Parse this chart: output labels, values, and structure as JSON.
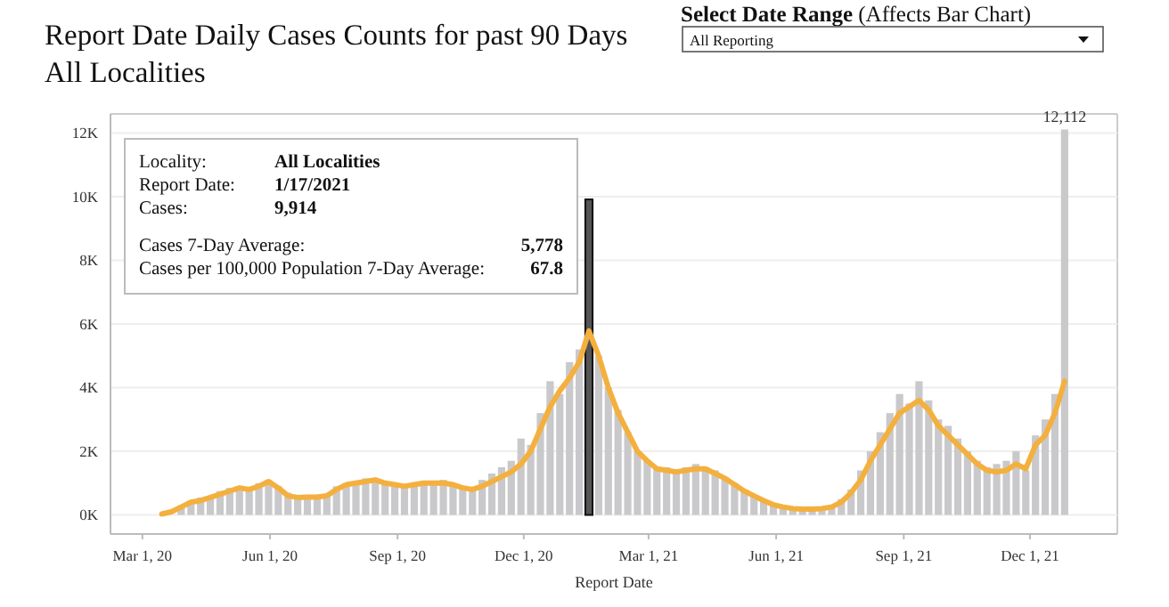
{
  "chart_data": {
    "type": "bar",
    "title": "Report Date Daily Cases Counts for past 90 Days",
    "subtitle": "All Localities",
    "xlabel": "Report Date",
    "annotations": [
      "Select Date Range (Affects Bar Chart)",
      "All Reporting",
      "Locality: All Localities",
      "Report Date: 1/17/2021",
      "Cases: 9,914",
      "Cases 7-Day Average: 5,778",
      "Cases per 100,000 Population 7-Day Average: 67.8"
    ],
    "x": [
      "2020-03-15",
      "2020-03-22",
      "2020-03-29",
      "2020-04-05",
      "2020-04-12",
      "2020-04-19",
      "2020-04-26",
      "2020-05-03",
      "2020-05-10",
      "2020-05-17",
      "2020-05-24",
      "2020-05-31",
      "2020-06-07",
      "2020-06-14",
      "2020-06-21",
      "2020-06-28",
      "2020-07-05",
      "2020-07-12",
      "2020-07-19",
      "2020-07-26",
      "2020-08-02",
      "2020-08-09",
      "2020-08-16",
      "2020-08-23",
      "2020-08-30",
      "2020-09-06",
      "2020-09-13",
      "2020-09-20",
      "2020-09-27",
      "2020-10-04",
      "2020-10-11",
      "2020-10-18",
      "2020-10-25",
      "2020-11-01",
      "2020-11-08",
      "2020-11-15",
      "2020-11-22",
      "2020-11-29",
      "2020-12-06",
      "2020-12-13",
      "2020-12-20",
      "2020-12-27",
      "2021-01-03",
      "2021-01-10",
      "2021-01-17",
      "2021-01-24",
      "2021-01-31",
      "2021-02-07",
      "2021-02-14",
      "2021-02-21",
      "2021-02-28",
      "2021-03-07",
      "2021-03-14",
      "2021-03-21",
      "2021-03-28",
      "2021-04-04",
      "2021-04-11",
      "2021-04-18",
      "2021-04-25",
      "2021-05-02",
      "2021-05-09",
      "2021-05-16",
      "2021-05-23",
      "2021-05-30",
      "2021-06-06",
      "2021-06-13",
      "2021-06-20",
      "2021-06-27",
      "2021-07-04",
      "2021-07-11",
      "2021-07-18",
      "2021-07-25",
      "2021-08-01",
      "2021-08-08",
      "2021-08-15",
      "2021-08-22",
      "2021-08-29",
      "2021-09-05",
      "2021-09-12",
      "2021-09-19",
      "2021-09-26",
      "2021-10-03",
      "2021-10-10",
      "2021-10-17",
      "2021-10-24",
      "2021-10-31",
      "2021-11-07",
      "2021-11-14",
      "2021-11-21",
      "2021-11-28",
      "2021-12-05",
      "2021-12-12",
      "2021-12-19",
      "2021-12-26"
    ],
    "series": [
      {
        "color": "#c9c9cc",
        "colors": [
          null,
          null,
          "#c9c9cc",
          "#c9c9cc",
          "#c9c9cc",
          "#c9c9cc",
          "#c9c9cc",
          "#c9c9cc",
          "#c9c9cc",
          "#c9c9cc",
          "#c9c9cc",
          "#c9c9cc",
          "#c9c9cc",
          "#c9c9cc",
          "#c9c9cc",
          "#c9c9cc",
          "#c9c9cc",
          "#c9c9cc",
          "#c9c9cc",
          "#c9c9cc",
          "#c9c9cc",
          "#c9c9cc",
          "#c9c9cc",
          "#c9c9cc",
          "#c9c9cc",
          "#c9c9cc",
          "#c9c9cc",
          "#c9c9cc",
          "#c9c9cc",
          "#c9c9cc",
          "#c9c9cc",
          "#c9c9cc",
          "#c9c9cc",
          "#c9c9cc",
          "#c9c9cc",
          "#c9c9cc",
          "#c9c9cc",
          "#c9c9cc",
          "#c9c9cc",
          "#c9c9cc",
          "#c9c9cc",
          "#c9c9cc",
          "#c9c9cc",
          "#c9c9cc",
          "#555555",
          "#c9c9cc",
          "#c9c9cc",
          "#c9c9cc",
          "#c9c9cc",
          "#c9c9cc",
          "#c9c9cc",
          "#c9c9cc",
          "#c9c9cc",
          "#c9c9cc",
          "#c9c9cc",
          "#c9c9cc",
          "#c9c9cc",
          "#c9c9cc",
          "#c9c9cc",
          "#c9c9cc",
          "#c9c9cc",
          "#c9c9cc",
          "#c9c9cc",
          "#c9c9cc",
          "#c9c9cc",
          "#c9c9cc",
          "#c9c9cc",
          "#c9c9cc",
          "#c9c9cc",
          "#c9c9cc",
          "#c9c9cc",
          "#c9c9cc",
          "#c9c9cc",
          "#c9c9cc",
          "#c9c9cc",
          "#c9c9cc",
          "#c9c9cc",
          "#c9c9cc",
          "#c9c9cc",
          "#c9c9cc",
          "#c9c9cc",
          "#c9c9cc",
          "#c9c9cc",
          "#c9c9cc",
          "#c9c9cc",
          "#c9c9cc",
          "#c9c9cc",
          "#c9c9cc",
          "#c9c9cc",
          "#c9c9cc",
          "#c9c9cc",
          "#c9c9cc",
          "#c9c9cc",
          "#c9c9cc"
        ],
        "values": [
          null,
          null,
          300,
          450,
          550,
          600,
          750,
          850,
          900,
          800,
          1000,
          1100,
          900,
          700,
          550,
          580,
          600,
          650,
          900,
          1000,
          1050,
          1150,
          1100,
          1000,
          950,
          900,
          1000,
          1050,
          950,
          1100,
          950,
          850,
          800,
          1100,
          1300,
          1500,
          1700,
          2400,
          2200,
          3200,
          4200,
          3800,
          4800,
          5200,
          9914,
          5000,
          4000,
          3300,
          2600,
          2000,
          1700,
          1500,
          1500,
          1400,
          1500,
          1600,
          1500,
          1400,
          1200,
          1000,
          800,
          600,
          450,
          300,
          250,
          220,
          180,
          200,
          220,
          300,
          500,
          800,
          1400,
          2000,
          2600,
          3200,
          3800,
          3500,
          4200,
          3600,
          3000,
          2800,
          2400,
          2000,
          1700,
          1500,
          1600,
          1700,
          2000,
          1400,
          2500,
          3000,
          3800,
          12112
        ],
        "value_labels": [
          null,
          null,
          null,
          null,
          null,
          null,
          null,
          null,
          null,
          null,
          null,
          null,
          null,
          null,
          null,
          null,
          null,
          null,
          null,
          null,
          null,
          null,
          null,
          null,
          null,
          null,
          null,
          null,
          null,
          null,
          null,
          null,
          null,
          null,
          null,
          null,
          null,
          null,
          null,
          null,
          null,
          null,
          null,
          null,
          null,
          null,
          null,
          null,
          null,
          null,
          null,
          null,
          null,
          null,
          null,
          null,
          null,
          null,
          null,
          null,
          null,
          null,
          null,
          null,
          null,
          null,
          null,
          null,
          null,
          null,
          null,
          null,
          null,
          null,
          null,
          null,
          null,
          null,
          null,
          null,
          null,
          null,
          null,
          null,
          null,
          null,
          null,
          null,
          null,
          null,
          null,
          null,
          null,
          "12,112"
        ]
      },
      {
        "type": "line",
        "color": "#f4b03e",
        "values": [
          30,
          100,
          250,
          400,
          450,
          550,
          650,
          750,
          850,
          800,
          900,
          1050,
          850,
          600,
          550,
          560,
          560,
          600,
          800,
          950,
          1000,
          1050,
          1100,
          1000,
          950,
          900,
          950,
          1000,
          1000,
          1000,
          950,
          850,
          800,
          900,
          1050,
          1200,
          1350,
          1600,
          2000,
          2700,
          3400,
          3900,
          4300,
          4800,
          5778,
          5000,
          4000,
          3200,
          2600,
          2000,
          1700,
          1450,
          1400,
          1350,
          1400,
          1450,
          1450,
          1300,
          1150,
          950,
          750,
          600,
          450,
          320,
          250,
          200,
          180,
          180,
          200,
          250,
          400,
          700,
          1100,
          1700,
          2200,
          2700,
          3200,
          3400,
          3600,
          3300,
          2800,
          2500,
          2200,
          1900,
          1600,
          1400,
          1350,
          1400,
          1600,
          1450,
          2200,
          2500,
          3200,
          4200
        ]
      }
    ],
    "xlim": [
      "2020-02-07",
      "2022-02-02"
    ],
    "xticks": [
      {
        "value": "2020-03-01",
        "label": "Mar 1, 20"
      },
      {
        "value": "2020-06-01",
        "label": "Jun 1, 20"
      },
      {
        "value": "2020-09-01",
        "label": "Sep 1, 20"
      },
      {
        "value": "2020-12-01",
        "label": "Dec 1, 20"
      },
      {
        "value": "2021-03-01",
        "label": "Mar 1, 21"
      },
      {
        "value": "2021-06-01",
        "label": "Jun 1, 21"
      },
      {
        "value": "2021-09-01",
        "label": "Sep 1, 21"
      },
      {
        "value": "2021-12-01",
        "label": "Dec 1, 21"
      }
    ],
    "ylim": [
      -600,
      12600
    ],
    "yticks": [
      {
        "value": 0,
        "label": "0K"
      },
      {
        "value": 2000,
        "label": "2K"
      },
      {
        "value": 4000,
        "label": "4K"
      },
      {
        "value": 6000,
        "label": "6K"
      },
      {
        "value": 8000,
        "label": "8K"
      },
      {
        "value": 10000,
        "label": "10K"
      },
      {
        "value": 12000,
        "label": "12K"
      }
    ],
    "grid": "y"
  }
}
